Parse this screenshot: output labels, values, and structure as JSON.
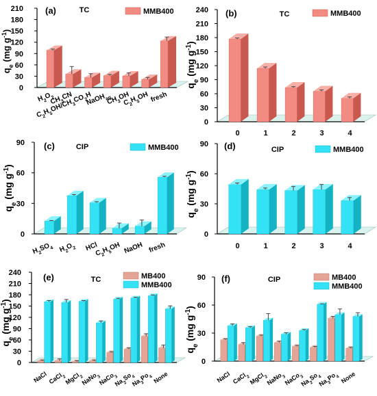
{
  "colors": {
    "red_face": "#f28b82",
    "red_side": "#c9584f",
    "red_top": "#f7b0a8",
    "cyan_face": "#33e3f5",
    "cyan_side": "#14b3c4",
    "cyan_top": "#8cf2fb",
    "mb_face": "#e5a596",
    "mb_side": "#b77868",
    "mb_top": "#f0c6bb",
    "floor": "#d9f2ee",
    "axis": "#000000"
  },
  "chart_data": [
    {
      "id": "a",
      "type": "bar",
      "panel_label": "(a)",
      "title": "TC",
      "ylabel": "q",
      "ylabel_sub": "e",
      "ylabel_unit": "(mg g",
      "ylabel_unit_sup": "-1",
      "ylabel_close": ")",
      "ylim": [
        0,
        210
      ],
      "yticks": [
        0,
        30,
        60,
        90,
        120,
        150,
        180,
        210
      ],
      "categories": [
        {
          "parts": [
            [
              "H",
              "n"
            ],
            [
              "2",
              "sub"
            ],
            [
              "O",
              "n"
            ],
            [
              "2",
              "sub"
            ]
          ]
        },
        {
          "parts": [
            [
              "CH",
              "n"
            ],
            [
              "3",
              "sub"
            ],
            [
              "CN",
              "n"
            ]
          ]
        },
        {
          "parts": [
            [
              "C",
              "n"
            ],
            [
              "2",
              "sub"
            ],
            [
              "H",
              "n"
            ],
            [
              "5",
              "sub"
            ],
            [
              "OH/CH",
              "n"
            ],
            [
              "3",
              "sub"
            ],
            [
              "CO",
              "n"
            ],
            [
              "2",
              "sub"
            ],
            [
              "H",
              "n"
            ]
          ]
        },
        {
          "parts": [
            [
              "NaOH",
              "n"
            ],
            [
              "aq",
              "sub"
            ]
          ]
        },
        {
          "parts": [
            [
              "CH",
              "n"
            ],
            [
              "3",
              "sub"
            ],
            [
              "OH",
              "n"
            ]
          ]
        },
        {
          "parts": [
            [
              "C",
              "n"
            ],
            [
              "2",
              "sub"
            ],
            [
              "H",
              "n"
            ],
            [
              "5",
              "sub"
            ],
            [
              "OH",
              "n"
            ]
          ]
        },
        {
          "parts": [
            [
              "fresh",
              "n"
            ]
          ]
        }
      ],
      "series": [
        {
          "name": "MMB400",
          "color": "red",
          "values": [
            105,
            42,
            33,
            38,
            37,
            28,
            130
          ],
          "errors": [
            3,
            20,
            10,
            3,
            8,
            5,
            10
          ]
        }
      ]
    },
    {
      "id": "b",
      "type": "bar",
      "panel_label": "(b)",
      "title": "TC",
      "ylabel": "q",
      "ylabel_sub": "e",
      "ylabel_unit": "(mg g",
      "ylabel_unit_sup": "-1",
      "ylabel_close": ")",
      "ylim": [
        0,
        240
      ],
      "yticks": [
        0,
        30,
        60,
        90,
        120,
        150,
        180,
        210,
        240
      ],
      "categories": [
        {
          "parts": [
            [
              "0",
              "n"
            ]
          ]
        },
        {
          "parts": [
            [
              "1",
              "n"
            ]
          ]
        },
        {
          "parts": [
            [
              "2",
              "n"
            ]
          ]
        },
        {
          "parts": [
            [
              "3",
              "n"
            ]
          ]
        },
        {
          "parts": [
            [
              "4",
              "n"
            ]
          ]
        }
      ],
      "series": [
        {
          "name": "MMB400",
          "color": "red",
          "values": [
            183,
            120,
            79,
            71,
            56
          ],
          "errors": [
            2,
            3,
            2,
            3,
            3
          ]
        }
      ]
    },
    {
      "id": "c",
      "type": "bar",
      "panel_label": "(c)",
      "title": "CIP",
      "ylabel": "q",
      "ylabel_sub": "e",
      "ylabel_unit": "(mg g",
      "ylabel_unit_sup": "-1",
      "ylabel_close": ")",
      "ylim": [
        0,
        90
      ],
      "yticks": [
        0,
        30,
        60,
        90
      ],
      "categories": [
        {
          "parts": [
            [
              "H",
              "n"
            ],
            [
              "2",
              "sub"
            ],
            [
              "SO",
              "n"
            ],
            [
              "4",
              "sub"
            ]
          ]
        },
        {
          "parts": [
            [
              "H",
              "n"
            ],
            [
              "2",
              "sub"
            ],
            [
              "O",
              "n"
            ],
            [
              "2",
              "sub"
            ]
          ]
        },
        {
          "parts": [
            [
              "HCl",
              "n"
            ]
          ]
        },
        {
          "parts": [
            [
              "C",
              "n"
            ],
            [
              "2",
              "sub"
            ],
            [
              "H",
              "n"
            ],
            [
              "5",
              "sub"
            ],
            [
              "OH",
              "n"
            ]
          ]
        },
        {
          "parts": [
            [
              "NaOH",
              "n"
            ]
          ]
        },
        {
          "parts": [
            [
              "fresh",
              "n"
            ]
          ]
        }
      ],
      "series": [
        {
          "name": "MMB400",
          "color": "cyan",
          "values": [
            15,
            40,
            33,
            8,
            10,
            58
          ],
          "errors": [
            0.5,
            1,
            1,
            5,
            6,
            1
          ]
        }
      ]
    },
    {
      "id": "d",
      "type": "bar",
      "panel_label": "(d)",
      "title": "CIP",
      "ylabel": "q",
      "ylabel_sub": "e",
      "ylabel_unit": "(mg g",
      "ylabel_unit_sup": "-1",
      "ylabel_close": ")",
      "ylim": [
        0,
        90
      ],
      "yticks": [
        0,
        30,
        60,
        90
      ],
      "categories": [
        {
          "parts": [
            [
              "0",
              "n"
            ]
          ]
        },
        {
          "parts": [
            [
              "1",
              "n"
            ]
          ]
        },
        {
          "parts": [
            [
              "2",
              "n"
            ]
          ]
        },
        {
          "parts": [
            [
              "3",
              "n"
            ]
          ]
        },
        {
          "parts": [
            [
              "4",
              "n"
            ]
          ]
        }
      ],
      "series": [
        {
          "name": "MMB400",
          "color": "cyan",
          "values": [
            52,
            47,
            46,
            47,
            36
          ],
          "errors": [
            1.5,
            1.5,
            4,
            5,
            3
          ]
        }
      ]
    },
    {
      "id": "e",
      "type": "bar",
      "panel_label": "(e)",
      "title": "TC",
      "ylabel": "q",
      "ylabel_sub": "e",
      "ylabel_unit": "(mg g",
      "ylabel_unit_sup": "-1",
      "ylabel_close": ")",
      "ylim": [
        0,
        240
      ],
      "yticks": [
        0,
        30,
        60,
        90,
        120,
        150,
        180,
        210,
        240
      ],
      "categories": [
        {
          "parts": [
            [
              "NaCl",
              "n"
            ]
          ]
        },
        {
          "parts": [
            [
              "CaCl",
              "n"
            ],
            [
              "2",
              "sub"
            ]
          ]
        },
        {
          "parts": [
            [
              "MgCl",
              "n"
            ],
            [
              "2",
              "sub"
            ]
          ]
        },
        {
          "parts": [
            [
              "NaNo",
              "n"
            ],
            [
              "3",
              "sub"
            ]
          ]
        },
        {
          "parts": [
            [
              "NaCo",
              "n"
            ],
            [
              "3",
              "sub"
            ]
          ]
        },
        {
          "parts": [
            [
              "Na",
              "n"
            ],
            [
              "2",
              "sub"
            ],
            [
              "So",
              "n"
            ],
            [
              "4",
              "sub"
            ]
          ]
        },
        {
          "parts": [
            [
              "Na",
              "n"
            ],
            [
              "3",
              "sub"
            ],
            [
              "Po",
              "n"
            ],
            [
              "4",
              "sub"
            ]
          ]
        },
        {
          "parts": [
            [
              "None",
              "n"
            ]
          ]
        }
      ],
      "series": [
        {
          "name": "MB400",
          "color": "mb",
          "values": [
            10,
            10,
            8,
            10,
            32,
            41,
            75,
            44
          ],
          "errors": [
            2,
            5,
            2,
            2,
            2,
            3,
            7,
            8
          ]
        },
        {
          "name": "MMB400",
          "color": "cyan",
          "values": [
            167,
            165,
            168,
            111,
            174,
            177,
            183,
            148
          ],
          "errors": [
            3,
            8,
            2,
            5,
            2,
            2,
            2,
            8
          ]
        }
      ]
    },
    {
      "id": "f",
      "type": "bar",
      "panel_label": "(f)",
      "title": "CIP",
      "ylabel": "q",
      "ylabel_sub": "e",
      "ylabel_unit": "(mg g",
      "ylabel_unit_sup": "-1",
      "ylabel_close": ")",
      "ylim": [
        0,
        90
      ],
      "yticks": [
        0,
        30,
        60,
        90
      ],
      "categories": [
        {
          "parts": [
            [
              "NaCl",
              "n"
            ]
          ]
        },
        {
          "parts": [
            [
              "CaCl",
              "n"
            ],
            [
              "2",
              "sub"
            ]
          ]
        },
        {
          "parts": [
            [
              "MgCl",
              "n"
            ],
            [
              "2",
              "sub"
            ]
          ]
        },
        {
          "parts": [
            [
              "NaNo",
              "n"
            ],
            [
              "3",
              "sub"
            ]
          ]
        },
        {
          "parts": [
            [
              "NaCo",
              "n"
            ],
            [
              "3",
              "sub"
            ]
          ]
        },
        {
          "parts": [
            [
              "Na",
              "n"
            ],
            [
              "2",
              "sub"
            ],
            [
              "So",
              "n"
            ],
            [
              "4",
              "sub"
            ]
          ]
        },
        {
          "parts": [
            [
              "Na",
              "n"
            ],
            [
              "3",
              "sub"
            ],
            [
              "Po",
              "n"
            ],
            [
              "4",
              "sub"
            ]
          ]
        },
        {
          "parts": [
            [
              "None",
              "n"
            ]
          ]
        }
      ],
      "series": [
        {
          "name": "MB400",
          "color": "mb",
          "values": [
            25,
            20,
            29,
            22,
            18,
            17,
            48,
            16
          ],
          "errors": [
            1,
            2,
            1,
            1.5,
            1,
            1,
            2,
            1
          ]
        },
        {
          "name": "MMB400",
          "color": "cyan",
          "values": [
            40,
            38,
            46,
            31,
            35,
            63,
            52,
            50
          ],
          "errors": [
            2,
            1,
            7,
            1.5,
            1,
            0.5,
            6,
            4
          ]
        }
      ]
    }
  ]
}
